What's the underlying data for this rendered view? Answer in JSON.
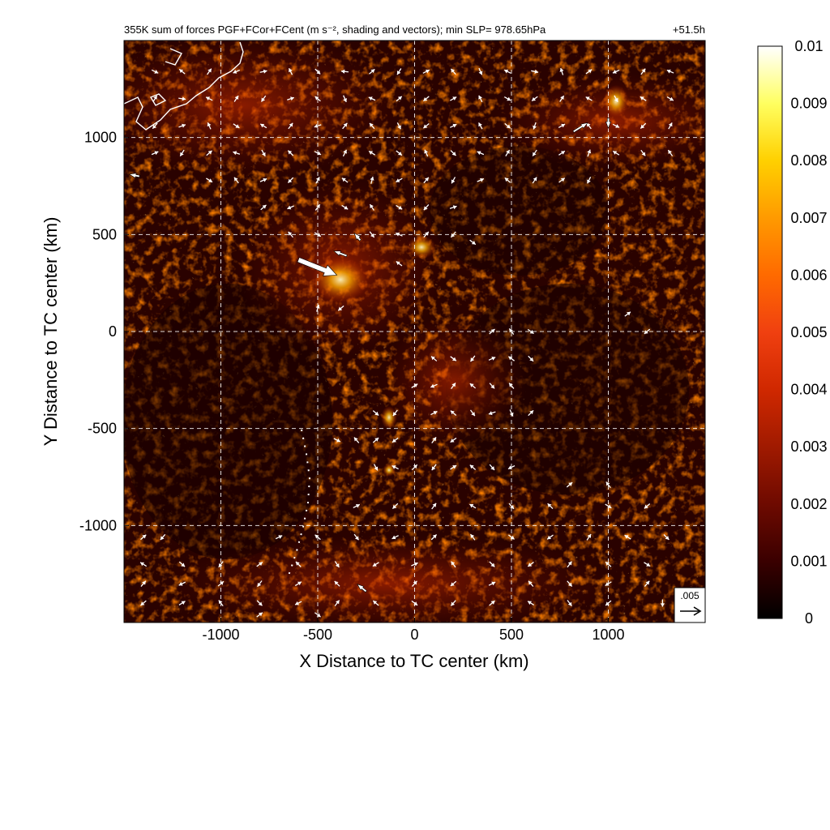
{
  "chart_data": {
    "type": "heatmap",
    "title": "355K sum of forces PGF+FCor+FCent (m s⁻², shading and vectors); min SLP= 978.65hPa",
    "time_label": "+51.5h",
    "xlabel": "X Distance to TC center (km)",
    "ylabel": "Y Distance to TC center (km)",
    "xlim": [
      -1500,
      1500
    ],
    "ylim": [
      -1500,
      1500
    ],
    "x_ticks": [
      -1000,
      -500,
      0,
      500,
      1000
    ],
    "y_ticks": [
      -1000,
      -500,
      0,
      500,
      1000
    ],
    "x_tick_labels": [
      "-1000",
      "-500",
      "0",
      "500",
      "1000"
    ],
    "y_tick_labels": [
      "-1000",
      "-500",
      "0",
      "500",
      "1000"
    ],
    "grid": true,
    "colorbar": {
      "min": 0,
      "max": 0.01,
      "ticks": [
        0,
        0.001,
        0.002,
        0.003,
        0.004,
        0.005,
        0.006,
        0.007,
        0.008,
        0.009,
        0.01
      ],
      "tick_labels": [
        "0",
        "0.001",
        "0.002",
        "0.003",
        "0.004",
        "0.005",
        "0.006",
        "0.007",
        "0.008",
        "0.009",
        "0.01"
      ],
      "colors": [
        "#000000",
        "#3a0000",
        "#6e0a00",
        "#a01a00",
        "#d02800",
        "#f04010",
        "#ff6a00",
        "#ff9a00",
        "#ffd000",
        "#ffff60",
        "#ffffff"
      ]
    },
    "reference_vector": {
      "value": 0.005,
      "label": ".005"
    },
    "large_vectors": [
      {
        "x": -600,
        "y": 370,
        "u": 0.0095,
        "v": -0.0038
      },
      {
        "x": -350,
        "y": 390,
        "u": -0.0032,
        "v": 0.0012
      },
      {
        "x": -280,
        "y": 470,
        "u": -0.0015,
        "v": 0.0018
      },
      {
        "x": 820,
        "y": 1030,
        "u": 0.0035,
        "v": 0.0022
      },
      {
        "x": 1000,
        "y": 1100,
        "u": 0.0,
        "v": -0.0025
      },
      {
        "x": -1420,
        "y": 800,
        "u": -0.0025,
        "v": 0.0005
      },
      {
        "x": -250,
        "y": -1340,
        "u": -0.0022,
        "v": 0.0018
      }
    ],
    "vector_field": [
      [
        -1340,
        1340,
        0.0008,
        -0.0004
      ],
      [
        -1200,
        1340,
        -0.0006,
        0.0005
      ],
      [
        -1060,
        1340,
        0.0005,
        0.0007
      ],
      [
        -920,
        1340,
        -0.0007,
        -0.0003
      ],
      [
        -780,
        1340,
        0.0009,
        0.0002
      ],
      [
        -640,
        1340,
        -0.0004,
        0.0008
      ],
      [
        -500,
        1340,
        0.0006,
        -0.0006
      ],
      [
        -360,
        1340,
        -0.0009,
        0.0001
      ],
      [
        -220,
        1340,
        0.0007,
        0.0006
      ],
      [
        -80,
        1340,
        -0.0005,
        -0.0008
      ],
      [
        60,
        1340,
        0.0012,
        0.0006
      ],
      [
        200,
        1340,
        -0.0006,
        0.0007
      ],
      [
        340,
        1340,
        0.0004,
        -0.0009
      ],
      [
        480,
        1340,
        -0.0008,
        0.0004
      ],
      [
        620,
        1340,
        0.0009,
        -0.0002
      ],
      [
        760,
        1340,
        -0.0003,
        0.0009
      ],
      [
        900,
        1340,
        0.0007,
        0.0005
      ],
      [
        1040,
        1340,
        -0.0009,
        -0.0004
      ],
      [
        1180,
        1340,
        0.0006,
        0.0008
      ],
      [
        1320,
        1340,
        -0.0007,
        0.0003
      ],
      [
        -1340,
        1200,
        0.0005,
        0.0008
      ],
      [
        -1200,
        1200,
        0.0013,
        -0.0002
      ],
      [
        -1060,
        1200,
        -0.0008,
        0.0004
      ],
      [
        -920,
        1200,
        0.0006,
        0.0009
      ],
      [
        -780,
        1200,
        -0.0005,
        -0.0007
      ],
      [
        -640,
        1200,
        0.0009,
        0.0003
      ],
      [
        -500,
        1200,
        -0.0007,
        0.0006
      ],
      [
        -360,
        1200,
        0.0004,
        -0.0009
      ],
      [
        -220,
        1200,
        -0.0009,
        0.0004
      ],
      [
        -80,
        1200,
        0.0008,
        0.0007
      ],
      [
        60,
        1200,
        -0.0006,
        -0.0005
      ],
      [
        200,
        1200,
        0.0007,
        0.0004
      ],
      [
        340,
        1200,
        -0.0004,
        0.0008
      ],
      [
        480,
        1200,
        0.0009,
        -0.0005
      ],
      [
        620,
        1200,
        -0.0008,
        -0.0006
      ],
      [
        760,
        1200,
        0.0006,
        0.0009
      ],
      [
        900,
        1200,
        -0.0007,
        0.0004
      ],
      [
        1040,
        1200,
        0.0005,
        -0.0009
      ],
      [
        1180,
        1200,
        -0.0009,
        0.0006
      ],
      [
        1320,
        1200,
        0.0007,
        -0.0004
      ],
      [
        -1340,
        1060,
        -0.0006,
        -0.0007
      ],
      [
        -1200,
        1060,
        0.0008,
        0.0003
      ],
      [
        -1060,
        1060,
        -0.0004,
        0.0009
      ],
      [
        -920,
        1060,
        0.0009,
        -0.0006
      ],
      [
        -780,
        1060,
        -0.0008,
        0.0005
      ],
      [
        -640,
        1060,
        0.0006,
        0.0008
      ],
      [
        -500,
        1060,
        -0.0009,
        -0.0003
      ],
      [
        -360,
        1060,
        0.0009,
        0.0011
      ],
      [
        -220,
        1060,
        -0.0006,
        0.0007
      ],
      [
        -80,
        1060,
        0.0004,
        -0.0008
      ],
      [
        60,
        1060,
        -0.0011,
        -0.0009
      ],
      [
        200,
        1060,
        0.0008,
        0.0004
      ],
      [
        340,
        1060,
        -0.0005,
        0.0009
      ],
      [
        480,
        1060,
        0.0007,
        -0.0006
      ],
      [
        620,
        1060,
        -0.0003,
        -0.0009
      ],
      [
        760,
        1060,
        0.0009,
        0.0005
      ],
      [
        900,
        1060,
        -0.0006,
        0.0008
      ],
      [
        1040,
        1060,
        0.0008,
        -0.0004
      ],
      [
        1180,
        1060,
        -0.0007,
        -0.0007
      ],
      [
        1320,
        1060,
        0.0005,
        0.0009
      ],
      [
        -1340,
        920,
        0.0009,
        0.0004
      ],
      [
        -1200,
        920,
        -0.0005,
        -0.0008
      ],
      [
        -1060,
        920,
        0.0007,
        0.0006
      ],
      [
        -920,
        920,
        -0.0009,
        0.0003
      ],
      [
        -780,
        920,
        0.0005,
        -0.0009
      ],
      [
        -640,
        920,
        -0.0007,
        0.0007
      ],
      [
        -500,
        920,
        0.0008,
        -0.0004
      ],
      [
        -360,
        920,
        0.0006,
        0.0012
      ],
      [
        -220,
        920,
        -0.0008,
        0.0005
      ],
      [
        -80,
        920,
        0.0009,
        -0.0007
      ],
      [
        60,
        920,
        -0.0004,
        0.0009
      ],
      [
        200,
        920,
        0.0006,
        -0.0006
      ],
      [
        340,
        920,
        -0.0009,
        0.0004
      ],
      [
        480,
        920,
        0.0005,
        0.0008
      ],
      [
        620,
        920,
        -0.0006,
        -0.0009
      ],
      [
        760,
        920,
        0.0009,
        0.0006
      ],
      [
        900,
        920,
        0.0004,
        0.0011
      ],
      [
        1040,
        920,
        -0.0008,
        0.0005
      ],
      [
        1180,
        920,
        0.0006,
        -0.0008
      ],
      [
        1320,
        920,
        -0.0005,
        0.0007
      ],
      [
        -1060,
        780,
        0.0008,
        -0.0005
      ],
      [
        -920,
        780,
        -0.0006,
        0.0008
      ],
      [
        -780,
        780,
        0.0009,
        0.0004
      ],
      [
        -640,
        780,
        -0.0007,
        -0.0007
      ],
      [
        -500,
        780,
        0.0005,
        0.0009
      ],
      [
        -360,
        780,
        -0.0008,
        0.0006
      ],
      [
        -220,
        780,
        0.0003,
        0.0011
      ],
      [
        -80,
        780,
        -0.0009,
        -0.0005
      ],
      [
        60,
        780,
        0.0007,
        0.0008
      ],
      [
        200,
        780,
        -0.0005,
        -0.0009
      ],
      [
        340,
        780,
        0.0009,
        0.0004
      ],
      [
        480,
        780,
        -0.0007,
        0.0006
      ],
      [
        620,
        780,
        0.0006,
        0.0009
      ],
      [
        760,
        780,
        0.0008,
        0.0006
      ],
      [
        900,
        780,
        -0.0004,
        -0.0008
      ],
      [
        -780,
        640,
        0.0007,
        0.0006
      ],
      [
        -640,
        640,
        -0.0009,
        -0.0004
      ],
      [
        -500,
        640,
        0.0006,
        0.0008
      ],
      [
        -360,
        640,
        0.0011,
        -0.0007
      ],
      [
        -220,
        640,
        -0.0006,
        0.0009
      ],
      [
        -80,
        640,
        0.0008,
        -0.0005
      ],
      [
        60,
        640,
        -0.0007,
        -0.0008
      ],
      [
        200,
        640,
        0.0009,
        0.0003
      ],
      [
        -640,
        500,
        -0.0006,
        0.0007
      ],
      [
        -500,
        500,
        0.0008,
        -0.0005
      ],
      [
        -220,
        500,
        0.0006,
        -0.0008
      ],
      [
        -80,
        500,
        -0.0009,
        0.0004
      ],
      [
        60,
        500,
        0.0007,
        0.0008
      ],
      [
        200,
        500,
        -0.0006,
        -0.0007
      ],
      [
        300,
        460,
        0.0008,
        -0.0006
      ],
      [
        -80,
        350,
        -0.0008,
        0.0006
      ],
      [
        -500,
        120,
        0.0003,
        0.001
      ],
      [
        -380,
        120,
        -0.0007,
        -0.0006
      ],
      [
        400,
        0,
        0.0008,
        0.0007
      ],
      [
        500,
        0,
        -0.0006,
        0.0008
      ],
      [
        600,
        0,
        0.0007,
        -0.0005
      ],
      [
        1200,
        0,
        -0.0007,
        -0.0006
      ],
      [
        1100,
        90,
        0.0008,
        0.0006
      ],
      [
        100,
        -140,
        -0.0007,
        0.0006
      ],
      [
        200,
        -140,
        0.0008,
        -0.0006
      ],
      [
        300,
        -140,
        -0.0006,
        -0.0008
      ],
      [
        400,
        -140,
        0.0009,
        0.0004
      ],
      [
        500,
        -140,
        -0.0008,
        0.0006
      ],
      [
        600,
        -140,
        0.0007,
        -0.0007
      ],
      [
        0,
        -280,
        0.0008,
        0.0005
      ],
      [
        100,
        -280,
        -0.0009,
        -0.0004
      ],
      [
        200,
        -280,
        0.0006,
        0.0008
      ],
      [
        300,
        -280,
        -0.0007,
        0.0006
      ],
      [
        400,
        -280,
        0.0008,
        -0.0009
      ],
      [
        500,
        -280,
        -0.0006,
        0.0007
      ],
      [
        -200,
        -420,
        0.0007,
        -0.0006
      ],
      [
        -100,
        -420,
        -0.0006,
        -0.0008
      ],
      [
        100,
        -420,
        0.0008,
        0.0004
      ],
      [
        200,
        -420,
        -0.0007,
        0.0006
      ],
      [
        300,
        -420,
        0.0006,
        -0.0008
      ],
      [
        400,
        -420,
        -0.0009,
        -0.0003
      ],
      [
        500,
        -420,
        0.0005,
        -0.0011
      ],
      [
        600,
        -420,
        0.0007,
        0.0007
      ],
      [
        -400,
        -560,
        0.0008,
        -0.0004
      ],
      [
        -300,
        -560,
        -0.0006,
        0.0007
      ],
      [
        -200,
        -560,
        0.0007,
        0.0006
      ],
      [
        -100,
        -560,
        -0.0008,
        -0.0006
      ],
      [
        100,
        -560,
        0.0006,
        0.0008
      ],
      [
        200,
        -560,
        -0.0007,
        -0.0005
      ],
      [
        -200,
        -700,
        0.0005,
        -0.0009
      ],
      [
        -100,
        -700,
        -0.0008,
        0.0004
      ],
      [
        0,
        -700,
        0.0007,
        0.0007
      ],
      [
        100,
        -700,
        -0.0006,
        -0.0008
      ],
      [
        200,
        -700,
        0.0008,
        0.0005
      ],
      [
        300,
        -700,
        -0.0007,
        0.0006
      ],
      [
        400,
        -700,
        0.0006,
        -0.0007
      ],
      [
        500,
        -700,
        -0.0008,
        -0.0004
      ],
      [
        800,
        -790,
        0.0007,
        0.0006
      ],
      [
        1000,
        -790,
        -0.0006,
        0.0008
      ],
      [
        -300,
        -900,
        0.0008,
        0.0004
      ],
      [
        -100,
        -900,
        -0.0007,
        -0.0007
      ],
      [
        100,
        -900,
        0.0006,
        0.0008
      ],
      [
        300,
        -900,
        -0.0008,
        0.0005
      ],
      [
        500,
        -900,
        0.0007,
        -0.0008
      ],
      [
        700,
        -900,
        -0.0006,
        0.0006
      ],
      [
        1000,
        -900,
        0.0008,
        -0.0005
      ],
      [
        1200,
        -900,
        -0.0007,
        -0.0006
      ],
      [
        -1400,
        -1060,
        0.0007,
        0.0006
      ],
      [
        -1300,
        -1060,
        -0.0006,
        -0.0007
      ],
      [
        -700,
        -1060,
        0.0008,
        0.0004
      ],
      [
        -500,
        -1060,
        -0.0007,
        0.0006
      ],
      [
        -300,
        -1060,
        0.0006,
        -0.0008
      ],
      [
        -100,
        -1060,
        -0.0008,
        -0.0004
      ],
      [
        100,
        -1060,
        0.0007,
        0.0007
      ],
      [
        300,
        -1060,
        -0.0006,
        0.0008
      ],
      [
        500,
        -1060,
        0.0008,
        -0.0006
      ],
      [
        700,
        -1060,
        -0.0007,
        -0.0005
      ],
      [
        900,
        -1060,
        0.0006,
        0.0009
      ],
      [
        1100,
        -1060,
        -0.0008,
        0.0005
      ],
      [
        1300,
        -1060,
        0.0007,
        -0.0007
      ],
      [
        -1400,
        -1200,
        -0.0008,
        0.0005
      ],
      [
        -1200,
        -1200,
        0.0007,
        -0.0006
      ],
      [
        -1000,
        -1200,
        -0.0006,
        -0.0008
      ],
      [
        -800,
        -1200,
        0.0008,
        0.0006
      ],
      [
        -600,
        -1200,
        -0.0007,
        0.0007
      ],
      [
        -400,
        -1200,
        0.0006,
        -0.0009
      ],
      [
        -200,
        -1200,
        -0.0008,
        -0.0005
      ],
      [
        0,
        -1200,
        0.0009,
        0.0004
      ],
      [
        200,
        -1200,
        -0.0006,
        0.0008
      ],
      [
        400,
        -1200,
        0.0007,
        -0.0007
      ],
      [
        600,
        -1200,
        -0.0008,
        -0.0006
      ],
      [
        800,
        -1200,
        0.0006,
        0.0008
      ],
      [
        1000,
        -1200,
        -0.0007,
        0.0006
      ],
      [
        1200,
        -1200,
        0.0008,
        -0.0005
      ],
      [
        -1400,
        -1300,
        0.0006,
        0.0007
      ],
      [
        -1200,
        -1300,
        -0.0008,
        -0.0004
      ],
      [
        -1000,
        -1300,
        0.0007,
        0.0006
      ],
      [
        -800,
        -1300,
        -0.0006,
        -0.0008
      ],
      [
        -600,
        -1300,
        0.0008,
        0.0005
      ],
      [
        -400,
        -1300,
        -0.0007,
        0.0007
      ],
      [
        0,
        -1300,
        0.0007,
        0.0008
      ],
      [
        200,
        -1300,
        -0.0007,
        -0.0006
      ],
      [
        400,
        -1300,
        0.0008,
        0.0004
      ],
      [
        600,
        -1300,
        -0.0006,
        0.0007
      ],
      [
        800,
        -1300,
        0.0007,
        -0.0008
      ],
      [
        1000,
        -1300,
        -0.0008,
        -0.0005
      ],
      [
        1200,
        -1300,
        0.0006,
        0.0007
      ],
      [
        -1400,
        -1400,
        -0.0007,
        -0.0006
      ],
      [
        -1200,
        -1400,
        0.0008,
        0.0005
      ],
      [
        -1000,
        -1400,
        -0.0006,
        0.0008
      ],
      [
        -800,
        -1400,
        0.0007,
        -0.0007
      ],
      [
        -600,
        -1400,
        -0.0008,
        -0.0004
      ],
      [
        -400,
        -1400,
        0.0006,
        0.0008
      ],
      [
        -200,
        -1400,
        -0.0007,
        0.0006
      ],
      [
        0,
        -1400,
        0.0008,
        -0.0006
      ],
      [
        200,
        -1400,
        -0.0006,
        -0.0007
      ],
      [
        400,
        -1400,
        0.0007,
        0.0006
      ],
      [
        600,
        -1400,
        -0.0008,
        0.0005
      ],
      [
        800,
        -1400,
        0.0006,
        -0.0008
      ],
      [
        1000,
        -1400,
        -0.0007,
        -0.0006
      ],
      [
        1280,
        -1400,
        0.0,
        -0.0011
      ],
      [
        -800,
        -1460,
        0.0012,
        0.0009
      ],
      [
        -500,
        -1460,
        0.0012,
        -0.0009
      ]
    ]
  }
}
